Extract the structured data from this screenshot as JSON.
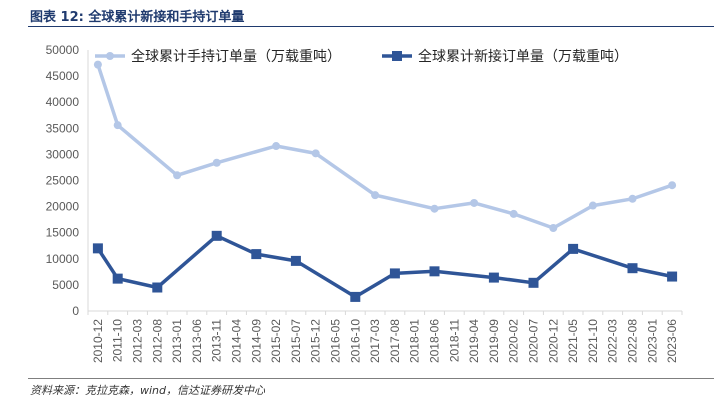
{
  "figure": {
    "title": "图表 12: 全球累计新接和手持订单量",
    "source": "资料来源：克拉克森，wind，信达证券研发中心"
  },
  "colors": {
    "title": "#1f3a6e",
    "axis": "#d9d9d9",
    "text": "#595959"
  },
  "chart_data": {
    "type": "line",
    "title": "",
    "xlabel": "",
    "ylabel": "",
    "ylim": [
      0,
      50000
    ],
    "yticks": [
      0,
      5000,
      10000,
      15000,
      20000,
      25000,
      30000,
      35000,
      40000,
      45000,
      50000
    ],
    "grid": false,
    "legend_position": "top",
    "categories": [
      "2010-12",
      "2011-10",
      "2012-03",
      "2012-08",
      "2013-01",
      "2013-06",
      "2013-11",
      "2014-04",
      "2014-09",
      "2015-02",
      "2015-07",
      "2015-12",
      "2016-05",
      "2016-10",
      "2017-03",
      "2017-08",
      "2018-01",
      "2018-06",
      "2018-11",
      "2019-04",
      "2019-09",
      "2020-02",
      "2020-07",
      "2020-12",
      "2021-05",
      "2021-10",
      "2022-03",
      "2022-08",
      "2023-01",
      "2023-06"
    ],
    "series": [
      {
        "name": "全球累计手持订单量（万载重吨）",
        "color": "#b4c7e7",
        "marker": "circle",
        "points": [
          {
            "x": "2010-12",
            "y": 47200
          },
          {
            "x": "2011-10",
            "y": 35600
          },
          {
            "x": "2013-01",
            "y": 26000
          },
          {
            "x": "2013-11",
            "y": 28400
          },
          {
            "x": "2015-02",
            "y": 31600
          },
          {
            "x": "2015-12",
            "y": 30200
          },
          {
            "x": "2017-03",
            "y": 22200
          },
          {
            "x": "2018-06",
            "y": 19600
          },
          {
            "x": "2019-04",
            "y": 20700
          },
          {
            "x": "2020-02",
            "y": 18600
          },
          {
            "x": "2020-12",
            "y": 15900
          },
          {
            "x": "2021-10",
            "y": 20200
          },
          {
            "x": "2022-08",
            "y": 21500
          },
          {
            "x": "2023-06",
            "y": 24100
          }
        ]
      },
      {
        "name": "全球累计新接订单量（万载重吨）",
        "color": "#2f5597",
        "marker": "square",
        "points": [
          {
            "x": "2010-12",
            "y": 12000
          },
          {
            "x": "2011-10",
            "y": 6200
          },
          {
            "x": "2012-08",
            "y": 4500
          },
          {
            "x": "2013-11",
            "y": 14400
          },
          {
            "x": "2014-09",
            "y": 10900
          },
          {
            "x": "2015-07",
            "y": 9600
          },
          {
            "x": "2016-10",
            "y": 2700
          },
          {
            "x": "2017-08",
            "y": 7200
          },
          {
            "x": "2018-06",
            "y": 7600
          },
          {
            "x": "2019-09",
            "y": 6400
          },
          {
            "x": "2020-07",
            "y": 5400
          },
          {
            "x": "2021-05",
            "y": 11900
          },
          {
            "x": "2022-08",
            "y": 8200
          },
          {
            "x": "2023-06",
            "y": 6600
          }
        ]
      }
    ]
  }
}
